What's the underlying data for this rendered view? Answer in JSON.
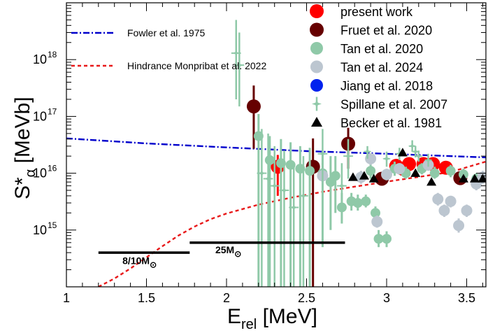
{
  "chart_data": {
    "type": "scatter",
    "title": "",
    "xlabel": {
      "main": "E",
      "sub": "rel",
      "unit": " [MeV]"
    },
    "ylabel": {
      "main": "S*",
      "sub": "α",
      "unit": " [MeVb]"
    },
    "xlim": [
      1.0,
      3.62
    ],
    "ylim": [
      100000000000000.0,
      1e+19
    ],
    "yscale": "log",
    "x_ticks": [
      {
        "value": 1.0,
        "label": "1"
      },
      {
        "value": 1.5,
        "label": "1.5"
      },
      {
        "value": 2.0,
        "label": "2"
      },
      {
        "value": 2.5,
        "label": "2.5"
      },
      {
        "value": 3.0,
        "label": "3"
      },
      {
        "value": 3.5,
        "label": "3.5"
      }
    ],
    "y_ticks": [
      {
        "value": 1000000000000000.0,
        "base": "10",
        "exp": "15"
      },
      {
        "value": 1e+16,
        "base": "10",
        "exp": "16"
      },
      {
        "value": 1e+17,
        "base": "10",
        "exp": "17"
      },
      {
        "value": 1e+18,
        "base": "10",
        "exp": "18"
      }
    ],
    "curves": [
      {
        "name": "Fowler et al. 1975",
        "color": "#0000cc",
        "style": "dashdot",
        "x": [
          1.0,
          1.5,
          2.0,
          2.5,
          3.0,
          3.62
        ],
        "y": [
          4.1e+16,
          3.35e+16,
          2.85e+16,
          2.45e+16,
          2.2e+16,
          1.9e+16
        ]
      },
      {
        "name": "Hindrance Monpribat et al. 2022",
        "color": "#e8191a",
        "style": "dash",
        "x": [
          1.2,
          1.3,
          1.4,
          1.5,
          1.6,
          1.7,
          1.8,
          1.9,
          2.0,
          2.2,
          2.4,
          2.6,
          2.8,
          3.0,
          3.2,
          3.4,
          3.62
        ],
        "y": [
          100000000000000.0,
          140000000000000.0,
          210000000000000.0,
          330000000000000.0,
          520000000000000.0,
          800000000000000.0,
          1150000000000000.0,
          1550000000000000.0,
          1950000000000000.0,
          2800000000000000.0,
          3700000000000000.0,
          4700000000000000.0,
          5800000000000000.0,
          7100000000000000.0,
          8600000000000000.0,
          1.05e+16,
          1.6e+16
        ]
      }
    ],
    "series": [
      {
        "name": "present work",
        "color": "#ff0000",
        "marker": "circle",
        "size": 10,
        "points": [
          {
            "x": 2.32,
            "y": 1.3e+16,
            "ylo": 4000000000000000.0,
            "yhi": 2.1e+16
          },
          {
            "x": 3.06,
            "y": 1.35e+16
          },
          {
            "x": 3.1,
            "y": 1.2e+16
          },
          {
            "x": 3.14,
            "y": 1.45e+16
          },
          {
            "x": 3.23,
            "y": 1.45e+16
          },
          {
            "x": 3.29,
            "y": 1.45e+16
          },
          {
            "x": 3.37,
            "y": 1.25e+16
          }
        ]
      },
      {
        "name": "Fruet et al. 2020",
        "color": "#660000",
        "marker": "circle",
        "size": 10,
        "points": [
          {
            "x": 2.17,
            "y": 1.5e+17,
            "ylo": 2.7e+16,
            "yhi": 3.5e+17
          },
          {
            "x": 2.54,
            "y": 1.3e+16,
            "ylo": 100000000000000.0,
            "yhi": 4.1e+16
          },
          {
            "x": 2.76,
            "y": 3.3e+16,
            "ylo": 1.2e+16,
            "yhi": 6.3e+16
          },
          {
            "x": 2.97,
            "y": 8000000000000000.0,
            "ylo": 6500000000000000.0,
            "yhi": 9500000000000000.0
          },
          {
            "x": 3.46,
            "y": 8200000000000000.0,
            "ylo": 6800000000000000.0,
            "yhi": 9800000000000000.0
          }
        ]
      },
      {
        "name": "Tan et al. 2020",
        "color": "#8fc9a8",
        "marker": "circle",
        "size": 7,
        "points": [
          {
            "x": 2.2,
            "y": 4.5e+16,
            "ylo": 100000000000000.0,
            "yhi": 1.1e+17
          },
          {
            "x": 2.27,
            "y": 1.7e+16,
            "ylo": 100000000000000.0,
            "yhi": 4.5e+16
          },
          {
            "x": 2.34,
            "y": 1.5e+16,
            "ylo": 100000000000000.0,
            "yhi": 4e+16
          },
          {
            "x": 2.4,
            "y": 1.4e+16,
            "ylo": 100000000000000.0,
            "yhi": 3.5e+16
          },
          {
            "x": 2.46,
            "y": 1.2e+16,
            "ylo": 100000000000000.0,
            "yhi": 3e+16
          },
          {
            "x": 2.52,
            "y": 1.1e+16,
            "ylo": 100000000000000.0,
            "yhi": 2.8e+16
          },
          {
            "x": 2.6,
            "y": 1e+16,
            "ylo": 500000000000000.0,
            "yhi": 2.4e+16
          },
          {
            "x": 2.65,
            "y": 7000000000000000.0,
            "ylo": 1000000000000000.0,
            "yhi": 2e+16
          },
          {
            "x": 2.68,
            "y": 9000000000000000.0,
            "ylo": 2000000000000000.0,
            "yhi": 2e+16
          },
          {
            "x": 2.72,
            "y": 2500000000000000.0,
            "ylo": 1300000000000000.0,
            "yhi": 4500000000000000.0
          },
          {
            "x": 2.78,
            "y": 3200000000000000.0,
            "ylo": 2200000000000000.0,
            "yhi": 4500000000000000.0
          },
          {
            "x": 2.82,
            "y": 3000000000000000.0,
            "ylo": 2200000000000000.0,
            "yhi": 4200000000000000.0
          },
          {
            "x": 2.87,
            "y": 3200000000000000.0,
            "ylo": 2500000000000000.0,
            "yhi": 4200000000000000.0
          },
          {
            "x": 2.9,
            "y": 1.1e+16,
            "ylo": 8000000000000000.0,
            "yhi": 1.5e+16
          },
          {
            "x": 2.93,
            "y": 2000000000000000.0,
            "ylo": 1500000000000000.0,
            "yhi": 2600000000000000.0
          },
          {
            "x": 2.95,
            "y": 700000000000000.0,
            "ylo": 500000000000000.0,
            "yhi": 1000000000000000.0
          },
          {
            "x": 3.0,
            "y": 700000000000000.0,
            "ylo": 500000000000000.0,
            "yhi": 950000000000000.0
          },
          {
            "x": 3.05,
            "y": 1.2e+16,
            "ylo": 9000000000000000.0,
            "yhi": 1.6e+16
          },
          {
            "x": 3.12,
            "y": 1e+16,
            "ylo": 8000000000000000.0,
            "yhi": 1.3e+16
          },
          {
            "x": 3.22,
            "y": 1.2e+16,
            "ylo": 9500000000000000.0,
            "yhi": 1.5e+16
          },
          {
            "x": 3.3,
            "y": 1e+16,
            "ylo": 8000000000000000.0,
            "yhi": 1.3e+16
          },
          {
            "x": 3.4,
            "y": 1.1e+16,
            "ylo": 8500000000000000.0,
            "yhi": 1.4e+16
          },
          {
            "x": 3.48,
            "y": 9500000000000000.0,
            "ylo": 7500000000000000.0,
            "yhi": 1.2e+16
          },
          {
            "x": 3.56,
            "y": 8000000000000000.0,
            "ylo": 6500000000000000.0,
            "yhi": 1e+16
          }
        ]
      },
      {
        "name": "Tan et al. 2024",
        "color": "#bcc6d0",
        "marker": "circle",
        "size": 8,
        "points": [
          {
            "x": 2.6,
            "y": 9000000000000000.0,
            "ylo": 6500000000000000.0,
            "yhi": 1.2e+16
          },
          {
            "x": 2.84,
            "y": 8500000000000000.0,
            "ylo": 6500000000000000.0,
            "yhi": 1.1e+16
          },
          {
            "x": 2.9,
            "y": 1.8e+16,
            "ylo": 1.4e+16,
            "yhi": 2.2e+16
          },
          {
            "x": 2.94,
            "y": 1400000000000000.0,
            "ylo": 1100000000000000.0,
            "yhi": 1800000000000000.0
          },
          {
            "x": 3.0,
            "y": 9500000000000000.0,
            "ylo": 7500000000000000.0,
            "yhi": 1.2e+16
          },
          {
            "x": 3.08,
            "y": 1.2e+16,
            "ylo": 9500000000000000.0,
            "yhi": 1.5e+16
          },
          {
            "x": 3.26,
            "y": 1.4e+16,
            "ylo": 1.1e+16,
            "yhi": 1.7e+16
          },
          {
            "x": 3.32,
            "y": 3500000000000000.0,
            "ylo": 2700000000000000.0,
            "yhi": 4500000000000000.0
          },
          {
            "x": 3.36,
            "y": 2200000000000000.0,
            "ylo": 1700000000000000.0,
            "yhi": 2800000000000000.0
          },
          {
            "x": 3.4,
            "y": 3200000000000000.0,
            "ylo": 2500000000000000.0,
            "yhi": 4000000000000000.0
          },
          {
            "x": 3.45,
            "y": 1200000000000000.0,
            "ylo": 900000000000000.0,
            "yhi": 1600000000000000.0
          },
          {
            "x": 3.5,
            "y": 2200000000000000.0,
            "ylo": 1700000000000000.0,
            "yhi": 2800000000000000.0
          },
          {
            "x": 3.56,
            "y": 6500000000000000.0,
            "ylo": 5000000000000000.0,
            "yhi": 8000000000000000.0
          },
          {
            "x": 3.6,
            "y": 8500000000000000.0,
            "ylo": 6500000000000000.0,
            "yhi": 1.1e+16
          }
        ]
      },
      {
        "name": "Jiang et al. 2018",
        "color": "#0022ee",
        "marker": "circle",
        "size": 7,
        "points": []
      },
      {
        "name": "Spillane et al. 2007",
        "color": "#8fc9a8",
        "marker": "star",
        "size": 6,
        "points": [
          {
            "x": 2.06,
            "y": 1.3e+18,
            "xerr": 0.03,
            "ylo": 2e+17,
            "yhi": 5e+18
          },
          {
            "x": 2.08,
            "y": 8e+17,
            "xerr": 0.03,
            "ylo": 1.5e+17,
            "yhi": 3e+18
          },
          {
            "x": 2.22,
            "y": 1e+16,
            "xerr": 0.03,
            "ylo": 100000000000000.0,
            "yhi": 6e+16
          },
          {
            "x": 2.26,
            "y": 8000000000000000.0,
            "xerr": 0.03,
            "ylo": 100000000000000.0,
            "yhi": 5e+16
          },
          {
            "x": 2.3,
            "y": 6000000000000000.0,
            "xerr": 0.03,
            "ylo": 100000000000000.0,
            "yhi": 3e+16
          },
          {
            "x": 2.36,
            "y": 5000000000000000.0,
            "xerr": 0.03,
            "ylo": 100000000000000.0,
            "yhi": 2.5e+16
          },
          {
            "x": 2.42,
            "y": 2500000000000000.0,
            "xerr": 0.03,
            "ylo": 100000000000000.0,
            "yhi": 1.5e+16
          },
          {
            "x": 2.48,
            "y": 4000000000000000.0,
            "xerr": 0.03,
            "ylo": 100000000000000.0,
            "yhi": 2e+16
          },
          {
            "x": 2.6,
            "y": 2.2e+16,
            "xerr": 0.03,
            "ylo": 5000000000000000.0,
            "yhi": 6e+16
          },
          {
            "x": 2.72,
            "y": 6000000000000000.0,
            "xerr": 0.03,
            "ylo": 1500000000000000.0,
            "yhi": 1.5e+16
          },
          {
            "x": 2.76,
            "y": 2e+16,
            "xerr": 0.03,
            "ylo": 8000000000000000.0,
            "yhi": 4e+16
          },
          {
            "x": 2.88,
            "y": 2.4e+16,
            "xerr": 0.02,
            "ylo": 1.8e+16,
            "yhi": 3e+16
          },
          {
            "x": 3.0,
            "y": 1.8e+16,
            "xerr": 0.02,
            "ylo": 1.3e+16,
            "yhi": 2.4e+16
          },
          {
            "x": 3.08,
            "y": 2.2e+16,
            "xerr": 0.02,
            "ylo": 1.7e+16,
            "yhi": 2.8e+16
          },
          {
            "x": 3.16,
            "y": 3e+16,
            "xerr": 0.02,
            "ylo": 2.4e+16,
            "yhi": 3.8e+16
          },
          {
            "x": 3.18,
            "y": 2.4e+16,
            "xerr": 0.02,
            "ylo": 1.9e+16,
            "yhi": 3e+16
          },
          {
            "x": 3.2,
            "y": 2e+16,
            "xerr": 0.02,
            "ylo": 1.6e+16,
            "yhi": 2.5e+16
          },
          {
            "x": 3.26,
            "y": 1.7e+16,
            "xerr": 0.02,
            "ylo": 1.3e+16,
            "yhi": 2.2e+16
          }
        ]
      },
      {
        "name": "Becker et al. 1981",
        "color": "#000000",
        "marker": "triangle",
        "size": 7,
        "points": [
          {
            "x": 2.79,
            "y": 8500000000000000.0
          },
          {
            "x": 2.86,
            "y": 9000000000000000.0
          },
          {
            "x": 2.92,
            "y": 8000000000000000.0
          },
          {
            "x": 3.1,
            "y": 2.3e+16
          },
          {
            "x": 3.18,
            "y": 1e+16
          },
          {
            "x": 3.28,
            "y": 7000000000000000.0
          },
          {
            "x": 3.48,
            "y": 8000000000000000.0
          },
          {
            "x": 3.55,
            "y": 8000000000000000.0
          },
          {
            "x": 3.6,
            "y": 8000000000000000.0
          }
        ]
      }
    ],
    "annotations": [
      {
        "text": "8/10M",
        "symbol": "⊙",
        "bar_x": [
          1.2,
          1.77
        ],
        "bar_y": 400000000000000.0,
        "label_x": 1.35,
        "label_y": 250000000000000.0
      },
      {
        "text": "25M",
        "symbol": "⊙",
        "bar_x": [
          1.77,
          2.74
        ],
        "bar_y": 600000000000000.0,
        "label_x": 1.93,
        "label_y": 390000000000000.0
      }
    ],
    "legend_placement": "top-right"
  }
}
